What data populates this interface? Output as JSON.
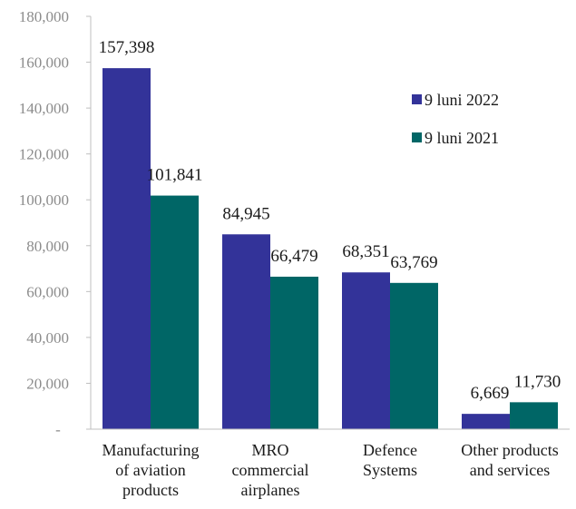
{
  "chart_data": {
    "type": "bar",
    "categories": [
      [
        "Manufacturing",
        "of aviation",
        "products"
      ],
      [
        "MRO",
        "commercial",
        "airplanes"
      ],
      [
        "Defence",
        "Systems"
      ],
      [
        "Other products",
        "and services"
      ]
    ],
    "series": [
      {
        "name": "9 luni 2022",
        "color": "#333399",
        "values": [
          157398,
          84945,
          68351,
          6669
        ],
        "labels": [
          "157,398",
          "84,945",
          "68,351",
          "6,669"
        ]
      },
      {
        "name": "9 luni 2021",
        "color": "#006666",
        "values": [
          101841,
          66479,
          63769,
          11730
        ],
        "labels": [
          "101,841",
          "66,479",
          "63,769",
          "11,730"
        ]
      }
    ],
    "ylim": [
      0,
      180000
    ],
    "yticks": [
      0,
      20000,
      40000,
      60000,
      80000,
      100000,
      120000,
      140000,
      160000,
      180000
    ],
    "ytick_labels": [
      "-",
      "20,000",
      "40,000",
      "60,000",
      "80,000",
      "100,000",
      "120,000",
      "140,000",
      "160,000",
      "180,000"
    ],
    "grid": false,
    "legend_position": "right"
  }
}
